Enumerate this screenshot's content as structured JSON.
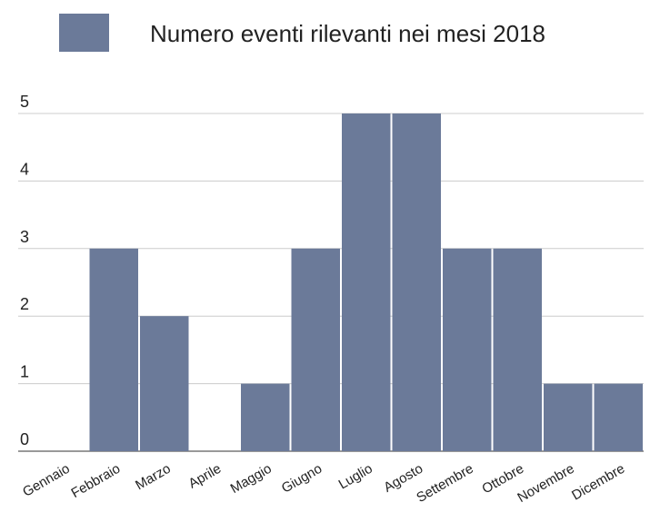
{
  "chart_data": {
    "type": "bar",
    "legend": "Numero eventi rilevanti nei mesi 2018",
    "categories": [
      "Gennaio",
      "Febbraio",
      "Marzo",
      "Aprile",
      "Maggio",
      "Giugno",
      "Luglio",
      "Agosto",
      "Settembre",
      "Ottobre",
      "Novembre",
      "Dicembre"
    ],
    "values": [
      0,
      3,
      2,
      0,
      1,
      3,
      5,
      5,
      3,
      3,
      1,
      1
    ],
    "color": "#6b7a99",
    "ylim": [
      0,
      5
    ],
    "yticks": [
      0,
      1,
      2,
      3,
      4,
      5
    ],
    "grid": true
  }
}
